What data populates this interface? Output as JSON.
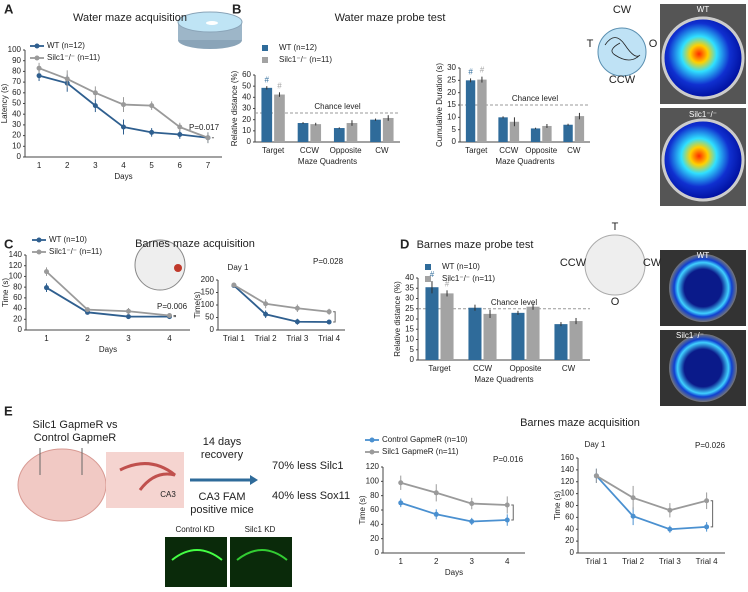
{
  "chart_data": [
    {
      "type": "line",
      "title": "Water maze acquisition",
      "xlabel": "Days",
      "ylabel": "Latency (s)",
      "categories": [
        "1",
        "2",
        "3",
        "4",
        "5",
        "6",
        "7"
      ],
      "series": [
        {
          "name": "WT (n=12)",
          "color": "#2f5f8f",
          "values": [
            76,
            69,
            48,
            28,
            23,
            21,
            18
          ],
          "errors": [
            5,
            8,
            6,
            7,
            4,
            4,
            5
          ]
        },
        {
          "name": "Silc1⁻/⁻ (n=11)",
          "color": "#9a9a9a",
          "values": [
            83,
            73,
            60,
            49,
            48,
            28,
            18
          ],
          "errors": [
            5,
            8,
            6,
            7,
            4,
            4,
            5
          ]
        }
      ],
      "ylim": [
        0,
        100
      ],
      "yticks": [
        0,
        10,
        20,
        30,
        40,
        50,
        60,
        70,
        80,
        90,
        100
      ],
      "annotation": "P=0.017"
    },
    {
      "type": "bar",
      "title": "Water maze probe test",
      "xlabel": "Maze Quadrents",
      "ylabel": "Relative distance (%)",
      "categories": [
        "Target",
        "CCW",
        "Opposite",
        "CW"
      ],
      "series": [
        {
          "name": "WT (n=12)",
          "color": "#2f6b9a",
          "values": [
            48.5,
            17,
            12.5,
            20
          ],
          "errors": [
            1.5,
            0.8,
            0.6,
            1
          ]
        },
        {
          "name": "Silc1⁻/⁻ (n=11)",
          "color": "#a3a3a3",
          "values": [
            42.5,
            16,
            17,
            21.5
          ],
          "errors": [
            2,
            1.2,
            2.5,
            2.5
          ]
        }
      ],
      "ylim": [
        0,
        60
      ],
      "yticks": [
        0,
        10,
        20,
        30,
        40,
        50,
        60
      ],
      "chance_level": 26,
      "chance_label": "Chance level",
      "significance_mark": "#"
    },
    {
      "type": "bar",
      "xlabel": "Maze Quadrents",
      "ylabel": "Cumulative Duration (s)",
      "categories": [
        "Target",
        "CCW",
        "Opposite",
        "CW"
      ],
      "series": [
        {
          "color": "#2f6b9a",
          "values": [
            25,
            10,
            5.5,
            7
          ],
          "errors": [
            0.8,
            0.4,
            0.3,
            0.4
          ]
        },
        {
          "color": "#a3a3a3",
          "values": [
            25.3,
            8.2,
            6.5,
            10.5
          ],
          "errors": [
            1.2,
            1.8,
            0.8,
            1.3
          ]
        }
      ],
      "ylim": [
        0,
        30
      ],
      "yticks": [
        0,
        5,
        10,
        15,
        20,
        25,
        30
      ],
      "chance_level": 15,
      "chance_label": "Chance level",
      "significance_mark": "#"
    },
    {
      "type": "line",
      "title": "Barnes maze acquisition",
      "xlabel": "Days",
      "ylabel": "Time (s)",
      "categories": [
        "1",
        "2",
        "3",
        "4"
      ],
      "series": [
        {
          "name": "WT (n=10)",
          "color": "#2f5f8f",
          "values": [
            79,
            33,
            25,
            25
          ],
          "errors": [
            8,
            3,
            4,
            4
          ]
        },
        {
          "name": "Silc1⁻/⁻ (n=11)",
          "color": "#9a9a9a",
          "values": [
            109,
            38,
            35,
            27
          ],
          "errors": [
            8,
            3,
            6,
            4
          ]
        }
      ],
      "ylim": [
        0,
        140
      ],
      "yticks": [
        0,
        20,
        40,
        60,
        80,
        100,
        120,
        140
      ],
      "annotation": "P=0.006"
    },
    {
      "type": "line",
      "title": "Day 1",
      "ylabel": "Time(s)",
      "categories": [
        "Trial 1",
        "Trial 2",
        "Trial 3",
        "Trial 4"
      ],
      "series": [
        {
          "color": "#2f5f8f",
          "values": [
            178,
            63,
            33,
            32
          ],
          "errors": [
            5,
            15,
            12,
            8
          ]
        },
        {
          "color": "#9a9a9a",
          "values": [
            180,
            105,
            87,
            73
          ],
          "errors": [
            5,
            18,
            15,
            12
          ]
        }
      ],
      "ylim": [
        0,
        200
      ],
      "yticks": [
        0,
        50,
        100,
        150,
        200
      ],
      "annotation": "P=0.028"
    },
    {
      "type": "bar",
      "title": "Barnes maze probe test",
      "xlabel": "Maze Quadrents",
      "ylabel": "Relative distance (%)",
      "categories": [
        "Target",
        "CCW",
        "Opposite",
        "CW"
      ],
      "series": [
        {
          "name": "WT (n=10)",
          "color": "#2f6b9a",
          "values": [
            35.5,
            25.5,
            23,
            17.5
          ],
          "errors": [
            3,
            1.5,
            1,
            1
          ]
        },
        {
          "name": "Silc1⁻/⁻ (n=11)",
          "color": "#a3a3a3",
          "values": [
            32.5,
            22.5,
            26,
            19
          ],
          "errors": [
            1.5,
            2,
            1.5,
            1.5
          ]
        }
      ],
      "ylim": [
        0,
        40
      ],
      "yticks": [
        0,
        5,
        10,
        15,
        20,
        25,
        30,
        35,
        40
      ],
      "chance_level": 25,
      "chance_label": "Chance level",
      "significance_mark": "#"
    },
    {
      "type": "line",
      "title": "Barnes maze acquisition",
      "xlabel": "Days",
      "ylabel": "Time (s)",
      "categories": [
        "1",
        "2",
        "3",
        "4"
      ],
      "series": [
        {
          "name": "Control GapmeR (n=10)",
          "color": "#4a90d0",
          "values": [
            70,
            54,
            44,
            46
          ],
          "errors": [
            6,
            7,
            5,
            8
          ]
        },
        {
          "name": "Silc1 GapmeR (n=11)",
          "color": "#9a9a9a",
          "values": [
            98,
            84,
            69,
            67
          ],
          "errors": [
            10,
            12,
            8,
            12
          ]
        }
      ],
      "ylim": [
        0,
        120
      ],
      "yticks": [
        0,
        20,
        40,
        60,
        80,
        100,
        120
      ],
      "annotation": "P=0.016"
    },
    {
      "type": "line",
      "title": "Day 1",
      "ylabel": "Time (s)",
      "categories": [
        "Trial 1",
        "Trial 2",
        "Trial 3",
        "Trial 4"
      ],
      "series": [
        {
          "color": "#4a90d0",
          "values": [
            130,
            62,
            40,
            44
          ],
          "errors": [
            12,
            15,
            6,
            8
          ]
        },
        {
          "color": "#9a9a9a",
          "values": [
            130,
            93,
            72,
            88
          ],
          "errors": [
            12,
            20,
            12,
            14
          ]
        }
      ],
      "ylim": [
        0,
        160
      ],
      "yticks": [
        0,
        20,
        40,
        60,
        80,
        100,
        120,
        140,
        160
      ],
      "annotation": "P=0.026"
    }
  ],
  "panel_labels": [
    "A",
    "B",
    "C",
    "D",
    "E"
  ],
  "heatmap_labels": [
    "WT",
    "Silc1⁻/⁻",
    "WT",
    "Silc1⁻/⁻"
  ],
  "water_maze_diagram": [
    "CW",
    "T",
    "O",
    "CCW"
  ],
  "barnes_diagram": [
    "T",
    "CCW",
    "CW",
    "O"
  ],
  "panel_e": {
    "groups": [
      "Silc1 GapmeR vs",
      "Control GapmeR"
    ],
    "region": "CA3",
    "treatment": [
      "14 days",
      "recovery"
    ],
    "selection": [
      "CA3 FAM",
      "positive mice"
    ],
    "results": [
      "70% less Silc1",
      "40% less Sox11"
    ],
    "images": [
      "Control KD",
      "Silc1 KD"
    ]
  }
}
